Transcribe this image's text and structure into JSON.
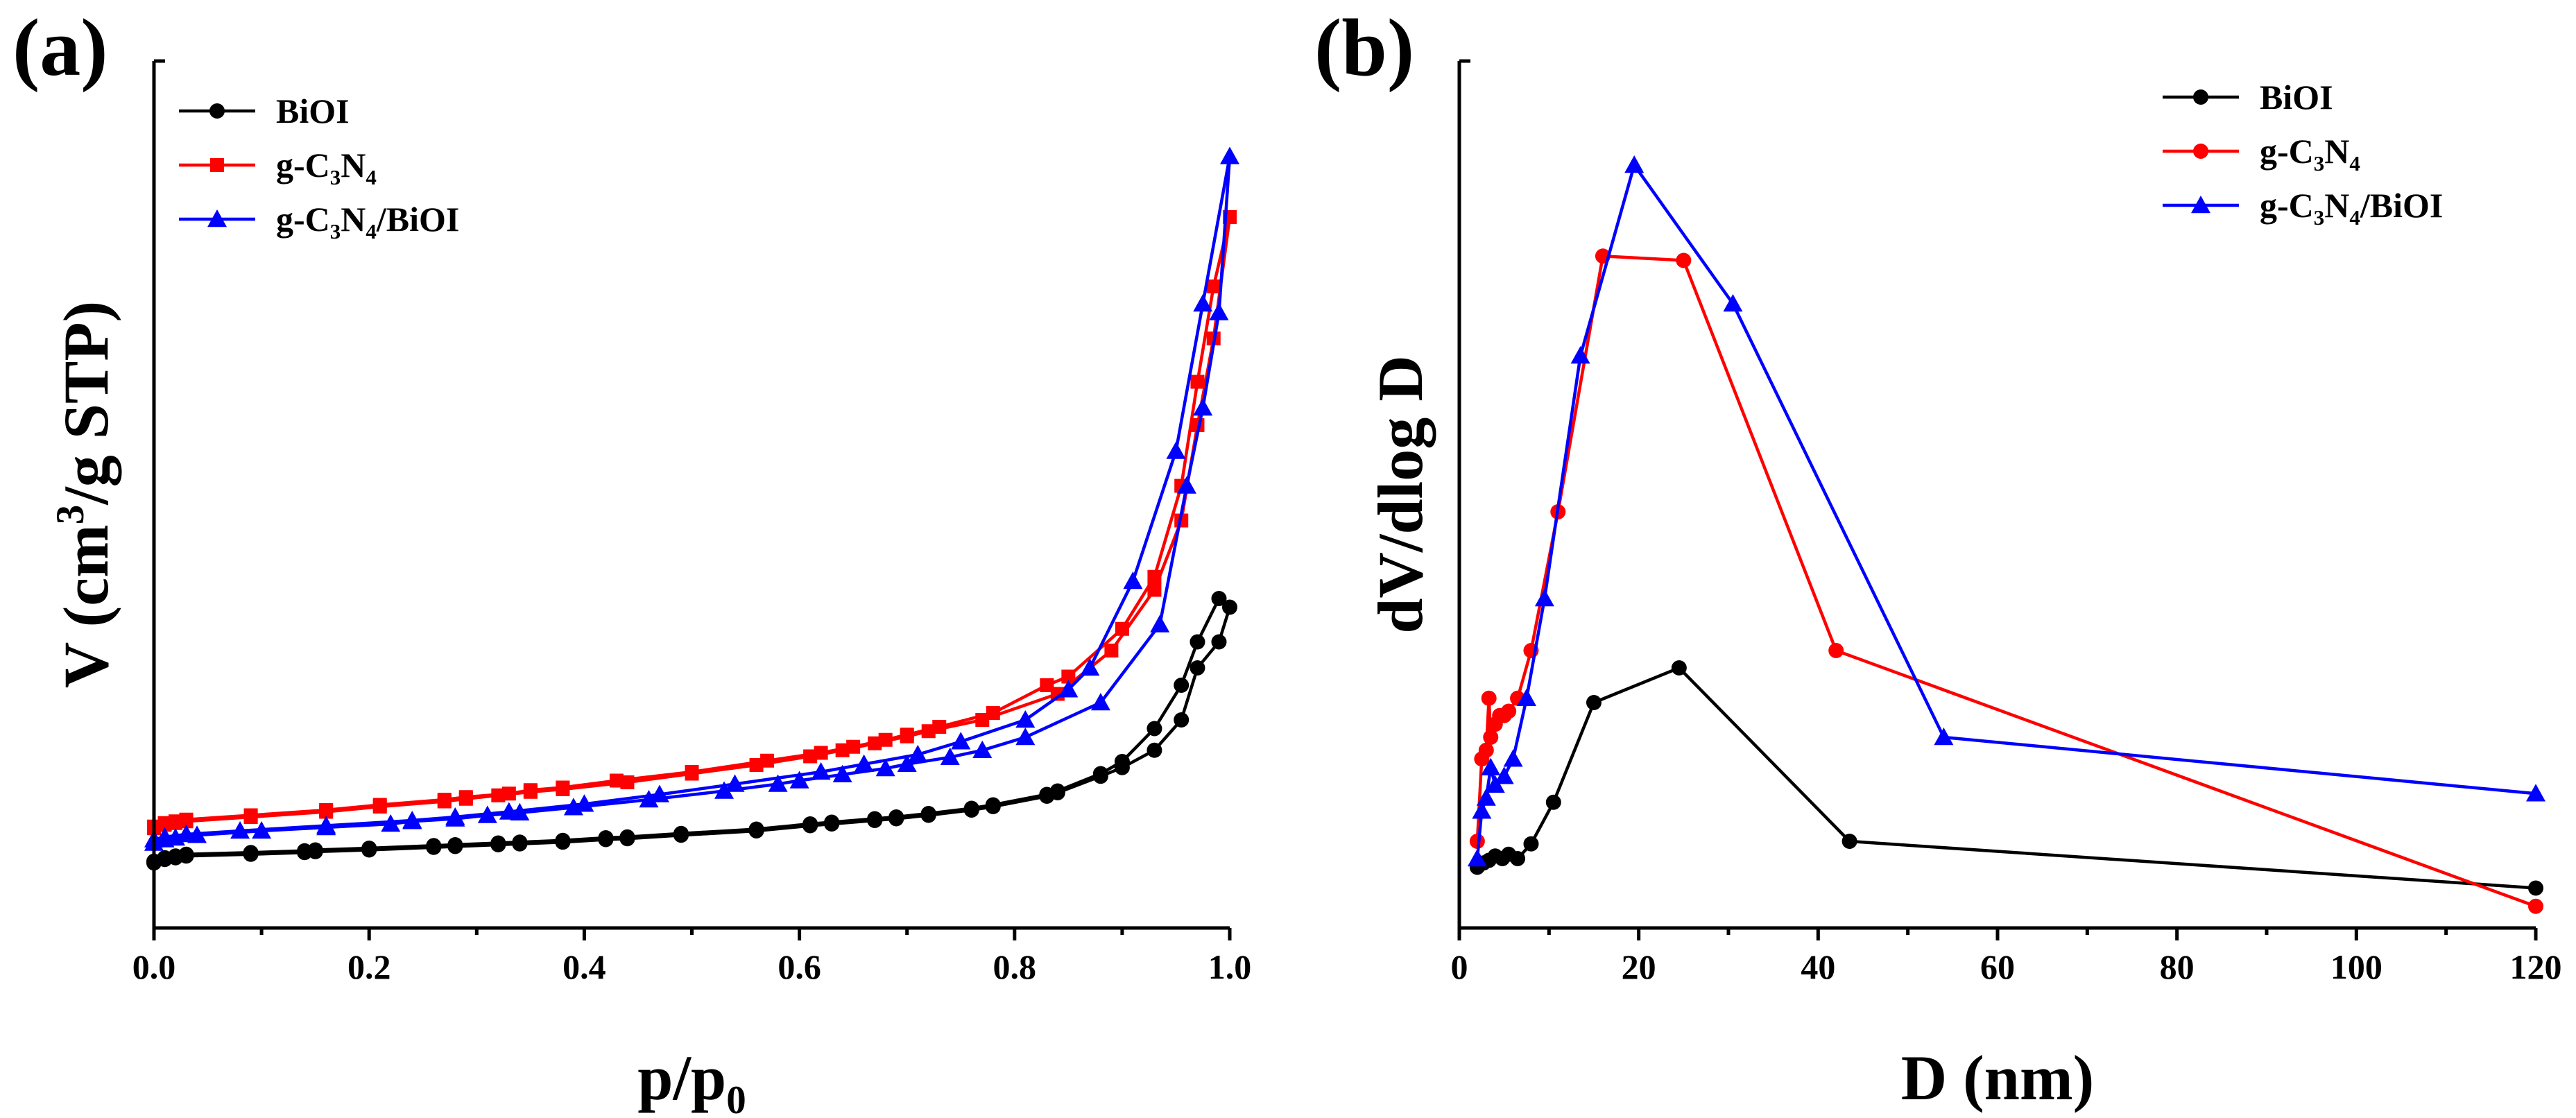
{
  "chart_data": [
    {
      "type": "line",
      "panel_label": "(a)",
      "xlabel": "p/p0",
      "ylabel": "V (cm3/g STP)",
      "xlim": [
        0.0,
        1.0
      ],
      "ylim": [
        0,
        100
      ],
      "y_ticks_labeled": false,
      "xticks": [
        "0.0",
        "0.2",
        "0.4",
        "0.6",
        "0.8",
        "1.0"
      ],
      "legend_location": "top-left",
      "series": [
        {
          "name": "BiOI",
          "color": "#000000",
          "marker": "circle",
          "x": [
            0.0,
            0.01,
            0.02,
            0.03,
            0.09,
            0.14,
            0.15,
            0.2,
            0.26,
            0.28,
            0.32,
            0.34,
            0.38,
            0.42,
            0.44,
            0.49,
            0.56,
            0.61,
            0.63,
            0.67,
            0.69,
            0.72,
            0.76,
            0.78,
            0.83,
            0.84,
            0.88,
            0.9,
            0.93,
            0.955,
            0.97,
            0.99,
            1.0,
            0.99,
            0.97,
            0.955,
            0.93,
            0.9,
            0.88,
            0.84,
            0.83,
            0.78,
            0.76,
            0.72,
            0.69,
            0.67,
            0.63,
            0.61,
            0.56,
            0.49,
            0.44,
            0.42,
            0.38,
            0.34,
            0.32,
            0.28,
            0.26,
            0.2,
            0.15,
            0.14,
            0.09,
            0.03,
            0.02,
            0.01,
            0.0
          ],
          "y": [
            7.5,
            7.9,
            8.1,
            8.3,
            8.5,
            8.7,
            8.8,
            9.0,
            9.3,
            9.4,
            9.6,
            9.7,
            9.9,
            10.2,
            10.3,
            10.7,
            11.2,
            11.8,
            12.0,
            12.4,
            12.6,
            13.0,
            13.6,
            14.0,
            15.2,
            15.6,
            17.5,
            18.5,
            20.5,
            24.0,
            30.0,
            33.0,
            37.0,
            38.0,
            33.0,
            28.0,
            23.0,
            19.2,
            17.8,
            15.8,
            15.4,
            14.2,
            13.8,
            13.2,
            12.8,
            12.6,
            12.2,
            12.0,
            11.4,
            10.9,
            10.5,
            10.4,
            10.1,
            9.9,
            9.8,
            9.6,
            9.5,
            9.2,
            9.0,
            8.9,
            8.7,
            8.5,
            8.3,
            8.1,
            7.7
          ]
        },
        {
          "name": "g-C3N4",
          "color": "#ff0000",
          "marker": "square",
          "x": [
            0.0,
            0.01,
            0.02,
            0.03,
            0.09,
            0.16,
            0.21,
            0.27,
            0.29,
            0.32,
            0.35,
            0.38,
            0.44,
            0.5,
            0.56,
            0.61,
            0.64,
            0.67,
            0.7,
            0.72,
            0.77,
            0.84,
            0.89,
            0.93,
            0.955,
            0.97,
            0.985,
            1.0,
            0.985,
            0.97,
            0.955,
            0.93,
            0.9,
            0.85,
            0.83,
            0.78,
            0.73,
            0.7,
            0.68,
            0.65,
            0.62,
            0.57,
            0.5,
            0.43,
            0.38,
            0.35,
            0.33,
            0.29,
            0.27,
            0.21,
            0.16,
            0.09,
            0.03,
            0.02,
            0.01,
            0.0
          ],
          "y": [
            11.5,
            11.9,
            12.1,
            12.3,
            12.8,
            13.4,
            14.0,
            14.6,
            14.9,
            15.3,
            15.7,
            16.0,
            16.8,
            17.8,
            18.8,
            19.8,
            20.5,
            21.3,
            22.1,
            22.7,
            24.0,
            27.0,
            32.0,
            39.0,
            47.0,
            58.0,
            68.0,
            82.0,
            74.0,
            63.0,
            51.0,
            40.5,
            34.5,
            29.0,
            28.0,
            24.8,
            23.2,
            22.3,
            21.7,
            20.9,
            20.2,
            19.3,
            18.0,
            17.0,
            16.2,
            15.9,
            15.5,
            15.1,
            14.8,
            14.2,
            13.6,
            13.0,
            12.5,
            12.3,
            12.1,
            11.7
          ]
        },
        {
          "name": "g-C3N4/BiOI",
          "color": "#0000ff",
          "marker": "triangle",
          "x": [
            0.0,
            0.01,
            0.02,
            0.04,
            0.1,
            0.16,
            0.22,
            0.24,
            0.28,
            0.31,
            0.34,
            0.39,
            0.46,
            0.53,
            0.58,
            0.6,
            0.64,
            0.68,
            0.7,
            0.74,
            0.77,
            0.81,
            0.88,
            0.935,
            0.96,
            0.975,
            0.99,
            1.0,
            0.975,
            0.95,
            0.91,
            0.87,
            0.85,
            0.81,
            0.75,
            0.71,
            0.66,
            0.62,
            0.54,
            0.47,
            0.4,
            0.33,
            0.28,
            0.24,
            0.16,
            0.08,
            0.03,
            0.01,
            0.0
          ],
          "y": [
            9.8,
            10.2,
            10.4,
            10.7,
            11.2,
            11.6,
            12.0,
            12.3,
            12.6,
            13.0,
            13.3,
            13.9,
            14.8,
            15.8,
            16.6,
            17.0,
            17.7,
            18.4,
            18.9,
            19.7,
            20.5,
            22.0,
            26.0,
            35.0,
            51.0,
            60.0,
            71.0,
            89.0,
            72.0,
            55.0,
            40.0,
            30.0,
            27.5,
            24.0,
            21.5,
            20.0,
            18.9,
            18.0,
            16.6,
            15.4,
            14.3,
            13.4,
            12.8,
            12.4,
            11.8,
            11.2,
            10.8,
            10.5,
            10.2
          ]
        }
      ]
    },
    {
      "type": "line",
      "panel_label": "(b)",
      "xlabel": "D (nm)",
      "ylabel": "dV/dlog D",
      "xlim": [
        0,
        120
      ],
      "ylim": [
        0,
        100
      ],
      "y_ticks_labeled": false,
      "xticks": [
        "0",
        "20",
        "40",
        "60",
        "80",
        "100",
        "120"
      ],
      "legend_location": "top-right",
      "series": [
        {
          "name": "BiOI",
          "color": "#000000",
          "marker": "circle",
          "x": [
            2.0,
            2.7,
            3.3,
            4.0,
            4.8,
            5.5,
            6.5,
            8.0,
            10.5,
            15.0,
            24.5,
            43.5,
            120
          ],
          "y": [
            7.0,
            7.5,
            7.8,
            8.3,
            8.0,
            8.5,
            8.0,
            9.7,
            14.5,
            26.0,
            30.0,
            10.0,
            4.6
          ]
        },
        {
          "name": "g-C3N4",
          "color": "#ff0000",
          "marker": "circle",
          "x": [
            2.0,
            2.5,
            3.0,
            3.3,
            3.5,
            4.0,
            4.5,
            5.0,
            5.5,
            6.5,
            8.0,
            11.0,
            16.0,
            25.0,
            42.0,
            120
          ],
          "y": [
            10.0,
            19.5,
            20.5,
            26.5,
            22.0,
            23.5,
            24.5,
            24.5,
            25.0,
            26.5,
            32.0,
            48.0,
            77.5,
            77.0,
            32.0,
            2.5
          ]
        },
        {
          "name": "g-C3N4/BiOI",
          "color": "#0000ff",
          "marker": "triangle",
          "x": [
            2.0,
            2.5,
            3.0,
            3.5,
            4.0,
            5.0,
            6.0,
            7.5,
            9.5,
            13.5,
            19.5,
            30.5,
            54.0,
            120
          ],
          "y": [
            8.0,
            13.5,
            15.0,
            18.5,
            16.5,
            17.5,
            19.5,
            26.5,
            38.0,
            66.0,
            88.0,
            72.0,
            22.0,
            15.5
          ]
        }
      ]
    }
  ]
}
